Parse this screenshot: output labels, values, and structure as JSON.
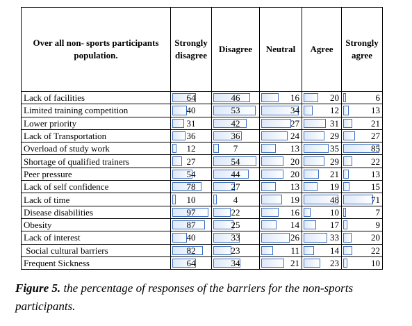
{
  "table": {
    "header": {
      "title": "Over all non- sports participants population.",
      "columns": [
        "Strongly disagree",
        "Disagree",
        "Neutral",
        "Agree",
        "Strongly agree"
      ]
    },
    "rows": [
      {
        "label": "Lack of facilities",
        "values": [
          64,
          46,
          16,
          20,
          6
        ]
      },
      {
        "label": "Limited training competition",
        "values": [
          40,
          53,
          34,
          12,
          13
        ]
      },
      {
        "label": "Lower priority",
        "values": [
          31,
          42,
          27,
          31,
          21
        ]
      },
      {
        "label": "Lack of Transportation",
        "values": [
          36,
          36,
          24,
          29,
          27
        ]
      },
      {
        "label": "Overload of study work",
        "values": [
          12,
          7,
          13,
          35,
          85
        ]
      },
      {
        "label": "Shortage of qualified trainers",
        "values": [
          27,
          54,
          20,
          29,
          22
        ]
      },
      {
        "label": "Peer pressure",
        "values": [
          54,
          44,
          20,
          21,
          13
        ]
      },
      {
        "label": "Lack of self confidence",
        "values": [
          78,
          27,
          13,
          19,
          15
        ]
      },
      {
        "label": "Lack of time",
        "values": [
          10,
          4,
          19,
          48,
          71
        ]
      },
      {
        "label": "Disease disabilities",
        "values": [
          97,
          22,
          16,
          10,
          7
        ]
      },
      {
        "label": "Obesity",
        "values": [
          87,
          25,
          14,
          17,
          9
        ]
      },
      {
        "label": "Lack of interest",
        "values": [
          40,
          33,
          26,
          33,
          20
        ]
      },
      {
        "label": " Social cultural barriers",
        "values": [
          82,
          23,
          11,
          14,
          22
        ]
      },
      {
        "label": "Frequent Sickness",
        "values": [
          64,
          34,
          21,
          23,
          10
        ]
      }
    ]
  },
  "caption": {
    "label": "Figure 5.",
    "text": " the percentage of responses of the barriers for the non-sports participants."
  }
}
